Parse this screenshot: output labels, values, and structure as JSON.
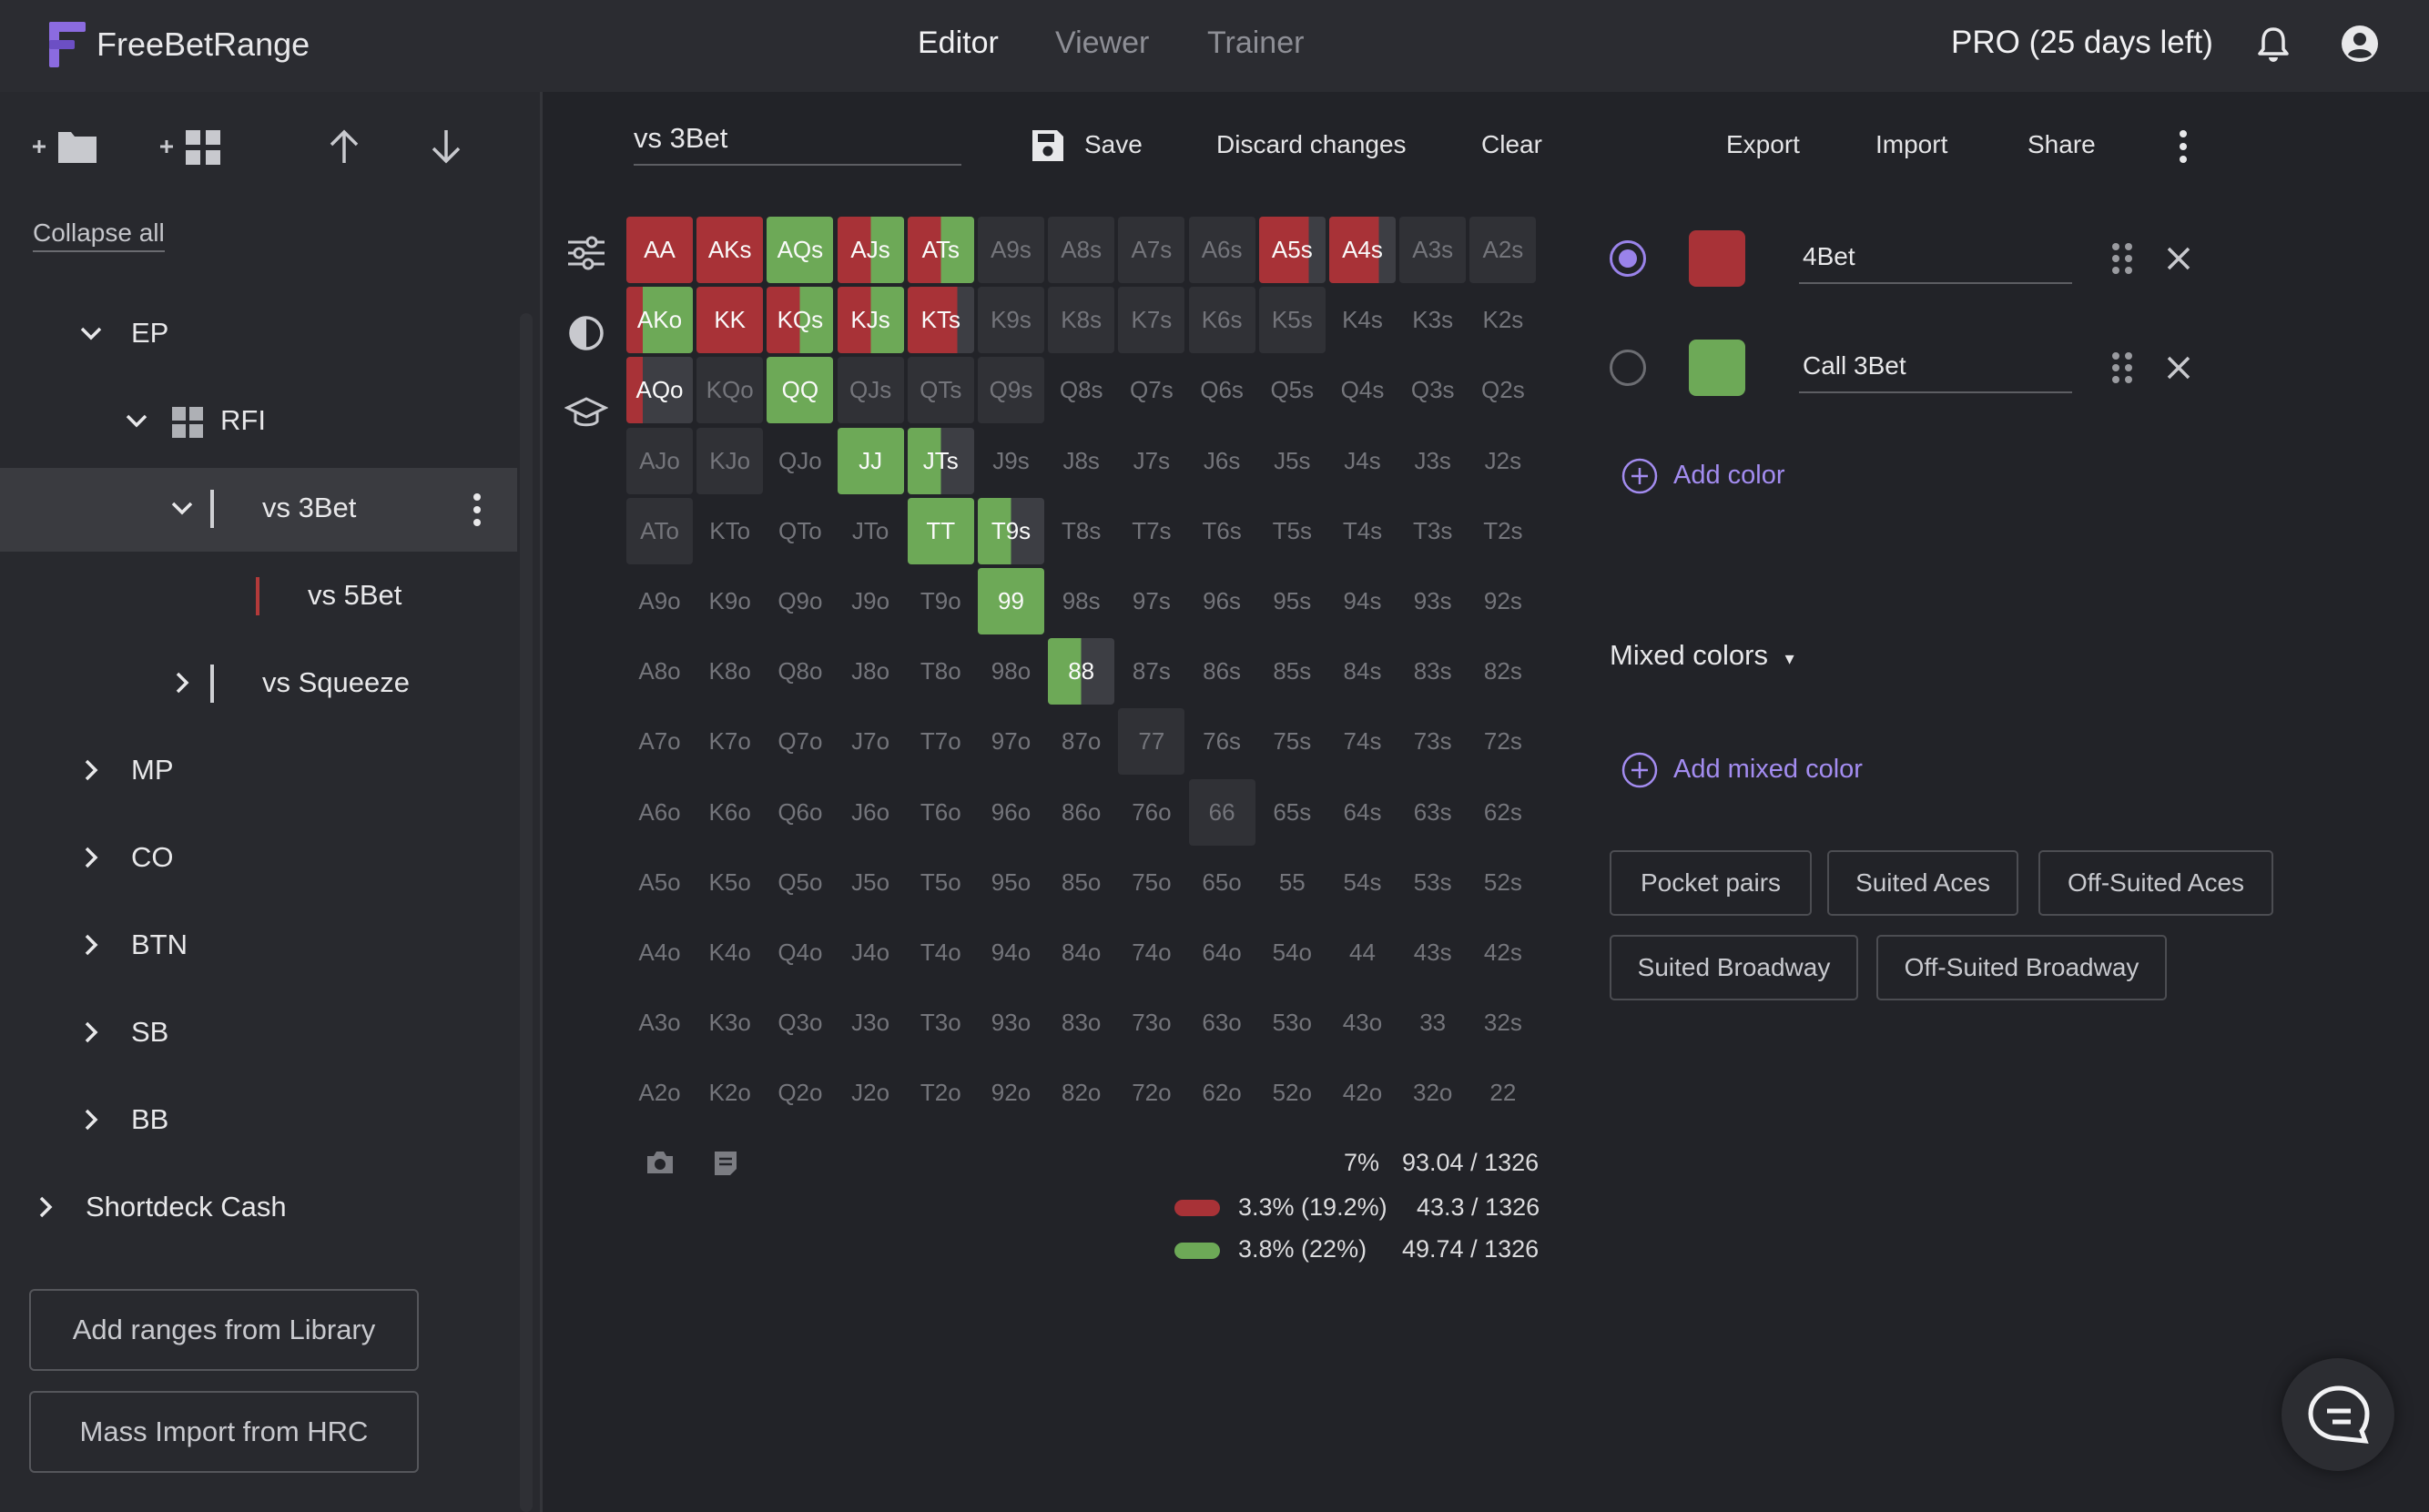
{
  "app": {
    "brand": "FreeBetRange"
  },
  "topnav": {
    "items": [
      "Editor",
      "Viewer",
      "Trainer"
    ],
    "active": "Editor"
  },
  "account": {
    "plan": "PRO (25 days left)"
  },
  "sidebar": {
    "collapse_all": "Collapse all",
    "tree": [
      {
        "label": "EP",
        "expanded": true
      },
      {
        "label": "RFI",
        "expanded": true
      },
      {
        "label": "vs 3Bet",
        "expanded": true,
        "selected": true
      },
      {
        "label": "vs 5Bet"
      },
      {
        "label": "vs Squeeze",
        "expanded": false
      },
      {
        "label": "MP",
        "expanded": false
      },
      {
        "label": "CO",
        "expanded": false
      },
      {
        "label": "BTN",
        "expanded": false
      },
      {
        "label": "SB",
        "expanded": false
      },
      {
        "label": "BB",
        "expanded": false
      },
      {
        "label": "Shortdeck Cash",
        "expanded": false
      }
    ],
    "add_library": "Add ranges from Library",
    "mass_import": "Mass Import from HRC"
  },
  "editor": {
    "range_name": "vs 3Bet",
    "save": "Save",
    "discard": "Discard changes",
    "clear": "Clear",
    "export": "Export",
    "import": "Import",
    "share": "Share"
  },
  "colors": {
    "red": "#a83237",
    "green": "#6da957",
    "dark": "#3d3e44",
    "blank": "#303136"
  },
  "grid": {
    "ranks": [
      "A",
      "K",
      "Q",
      "J",
      "T",
      "9",
      "8",
      "7",
      "6",
      "5",
      "4",
      "3",
      "2"
    ],
    "hands": {
      "AA": [
        1,
        0
      ],
      "AKs": [
        1,
        0
      ],
      "AQs": [
        0,
        1
      ],
      "AJs": [
        0.5,
        0.5
      ],
      "ATs": [
        0.5,
        0.5
      ],
      "A5s": [
        0.75,
        0
      ],
      "A4s": [
        0.75,
        0
      ],
      "AKo": [
        0.25,
        0.75
      ],
      "KK": [
        1,
        0
      ],
      "KQs": [
        0.5,
        0.5
      ],
      "KJs": [
        0.5,
        0.5
      ],
      "KTs": [
        0.75,
        0
      ],
      "AQo": [
        0.25,
        0
      ],
      "QQ": [
        0,
        1
      ],
      "JJ": [
        0,
        1
      ],
      "JTs": [
        0,
        0.5
      ],
      "TT": [
        0,
        1
      ],
      "T9s": [
        0,
        0.5
      ],
      "99": [
        0,
        1
      ],
      "88": [
        0,
        0.5
      ]
    },
    "blank_cells": [
      "A9s",
      "A8s",
      "A7s",
      "A6s",
      "A3s",
      "A2s",
      "K9s",
      "K8s",
      "K7s",
      "K6s",
      "K5s",
      "KQo",
      "QJs",
      "QTs",
      "Q9s",
      "AJo",
      "KJo",
      "ATo",
      "77",
      "66"
    ]
  },
  "stats": {
    "total_pct": "7%",
    "total_combos": "93.04 / 1326",
    "rows": [
      {
        "color": "#a83237",
        "pct": "3.3% (19.2%)",
        "combos": "43.3 / 1326"
      },
      {
        "color": "#6da957",
        "pct": "3.8% (22%)",
        "combos": "49.74 / 1326"
      }
    ]
  },
  "actions": [
    {
      "name": "4Bet",
      "color": "#a83237",
      "selected": true
    },
    {
      "name": "Call 3Bet",
      "color": "#6da957",
      "selected": false
    }
  ],
  "add_color": "Add color",
  "mixed_colors": {
    "title": "Mixed colors",
    "add": "Add mixed color"
  },
  "presets": [
    "Pocket pairs",
    "Suited Aces",
    "Off-Suited Aces",
    "Suited Broadway",
    "Off-Suited Broadway"
  ]
}
